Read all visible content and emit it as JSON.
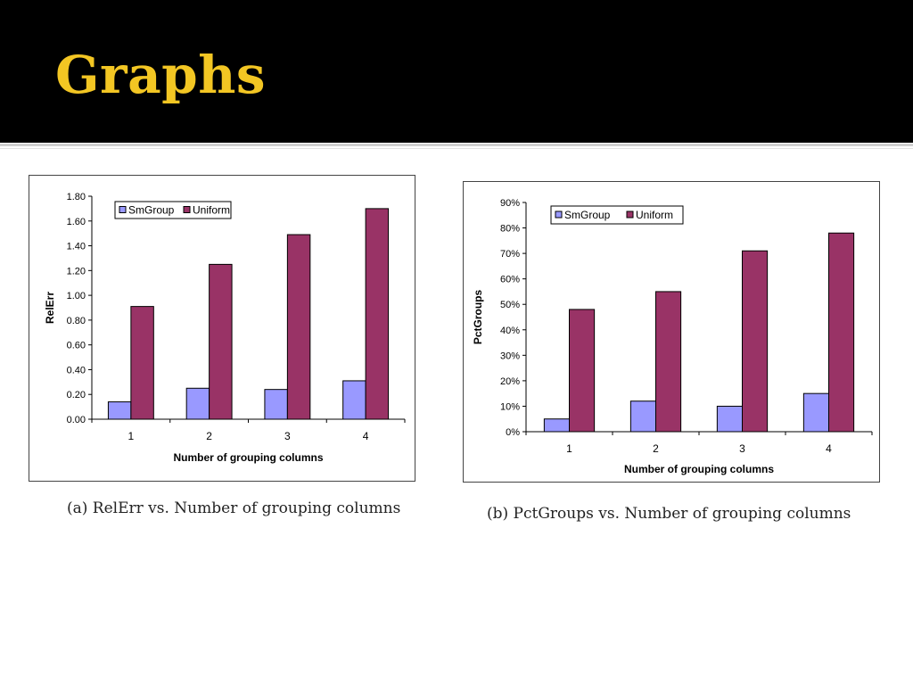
{
  "slide": {
    "title": "Graphs",
    "title_color": "#f3c623",
    "header_color": "#000000"
  },
  "captions": [
    "(a) RelErr vs. Number of grouping columns",
    "(b) PctGroups vs. Number of grouping columns"
  ],
  "chart_data": [
    {
      "type": "bar",
      "categories": [
        "1",
        "2",
        "3",
        "4"
      ],
      "series": [
        {
          "name": "SmGroup",
          "color": "#9999ff",
          "values": [
            0.14,
            0.25,
            0.24,
            0.31
          ]
        },
        {
          "name": "Uniform",
          "color": "#993366",
          "values": [
            0.91,
            1.25,
            1.49,
            1.7
          ]
        }
      ],
      "xlabel": "Number of  grouping columns",
      "ylabel": "RelErr",
      "ylim": [
        0,
        1.8
      ],
      "yticks": [
        "0.00",
        "0.20",
        "0.40",
        "0.60",
        "0.80",
        "1.00",
        "1.20",
        "1.40",
        "1.60",
        "1.80"
      ],
      "legend_position": "top-left",
      "grid": false
    },
    {
      "type": "bar",
      "categories": [
        "1",
        "2",
        "3",
        "4"
      ],
      "series": [
        {
          "name": "SmGroup",
          "color": "#9999ff",
          "values": [
            5,
            12,
            10,
            15
          ]
        },
        {
          "name": "Uniform",
          "color": "#993366",
          "values": [
            48,
            55,
            71,
            78
          ]
        }
      ],
      "xlabel": "Number of grouping columns",
      "ylabel": "PctGroups",
      "ylim": [
        0,
        90
      ],
      "yticks": [
        "0%",
        "10%",
        "20%",
        "30%",
        "40%",
        "50%",
        "60%",
        "70%",
        "80%",
        "90%"
      ],
      "legend_position": "top-left",
      "grid": false
    }
  ]
}
